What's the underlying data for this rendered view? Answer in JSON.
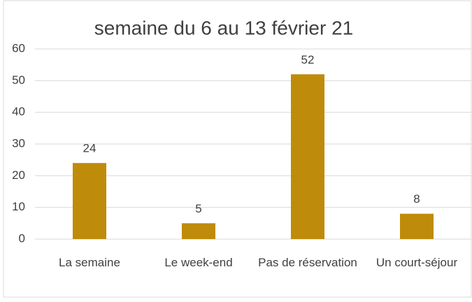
{
  "chart_data": {
    "type": "bar",
    "title": "semaine du 6 au 13 février 21",
    "categories": [
      "La semaine",
      "Le week-end",
      "Pas de réservation",
      "Un court-séjour"
    ],
    "values": [
      24,
      5,
      52,
      8
    ],
    "color": "#bf8b0a",
    "ylim": [
      0,
      60
    ],
    "yticks": [
      0,
      10,
      20,
      30,
      40,
      50,
      60
    ],
    "grid": true
  }
}
